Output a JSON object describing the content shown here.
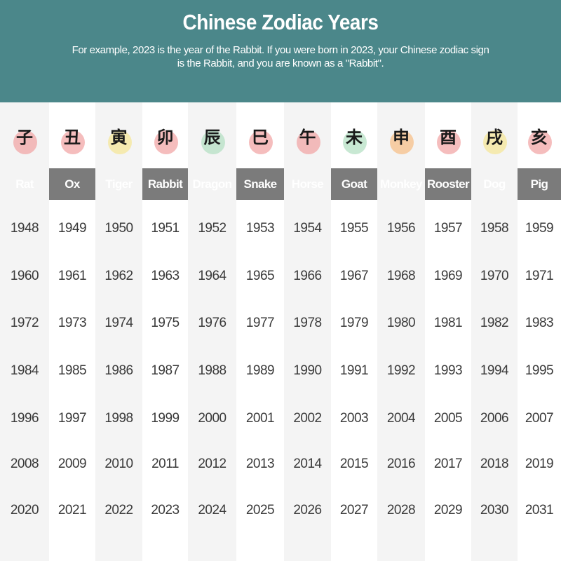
{
  "header": {
    "title": "Chinese Zodiac Years",
    "subtitle": "For example, 2023 is the year of the Rabbit. If you were born in 2023, your Chinese zodiac sign is the Rabbit, and you are known as a \"Rabbit\"."
  },
  "colors": {
    "header_bg": "#4b878a",
    "band_bg": "#7b7b7b"
  },
  "animals": [
    {
      "name": "Rat",
      "char": "子",
      "icon": "rat-icon",
      "blob": "#f2a7a7",
      "years": [
        "1948",
        "1960",
        "1972",
        "1984",
        "1996",
        "2008",
        "2020"
      ]
    },
    {
      "name": "Ox",
      "char": "丑",
      "icon": "ox-icon",
      "blob": "#f2a7a7",
      "years": [
        "1949",
        "1961",
        "1973",
        "1985",
        "1997",
        "2009",
        "2021"
      ]
    },
    {
      "name": "Tiger",
      "char": "寅",
      "icon": "tiger-icon",
      "blob": "#f5e79a",
      "years": [
        "1950",
        "1962",
        "1974",
        "1986",
        "1998",
        "2010",
        "2022"
      ]
    },
    {
      "name": "Rabbit",
      "char": "卯",
      "icon": "rabbit-icon",
      "blob": "#f2a7a7",
      "years": [
        "1951",
        "1963",
        "1975",
        "1987",
        "1999",
        "2011",
        "2023"
      ]
    },
    {
      "name": "Dragon",
      "char": "辰",
      "icon": "dragon-icon",
      "blob": "#b5e0c4",
      "years": [
        "1952",
        "1964",
        "1976",
        "1988",
        "2000",
        "2012",
        "2024"
      ]
    },
    {
      "name": "Snake",
      "char": "巳",
      "icon": "snake-icon",
      "blob": "#f2a7a7",
      "years": [
        "1953",
        "1965",
        "1977",
        "1989",
        "2001",
        "2013",
        "2025"
      ]
    },
    {
      "name": "Horse",
      "char": "午",
      "icon": "horse-icon",
      "blob": "#f2a7a7",
      "years": [
        "1954",
        "1966",
        "1978",
        "1990",
        "2002",
        "2014",
        "2026"
      ]
    },
    {
      "name": "Goat",
      "char": "未",
      "icon": "goat-icon",
      "blob": "#b5e0c4",
      "years": [
        "1955",
        "1967",
        "1979",
        "1991",
        "2003",
        "2015",
        "2027"
      ]
    },
    {
      "name": "Monkey",
      "char": "申",
      "icon": "monkey-icon",
      "blob": "#f7c08a",
      "years": [
        "1956",
        "1968",
        "1980",
        "1992",
        "2004",
        "2016",
        "2028"
      ]
    },
    {
      "name": "Rooster",
      "char": "酉",
      "icon": "rooster-icon",
      "blob": "#f2a7a7",
      "years": [
        "1957",
        "1969",
        "1981",
        "1993",
        "2005",
        "2017",
        "2029"
      ]
    },
    {
      "name": "Dog",
      "char": "戌",
      "icon": "dog-icon",
      "blob": "#f5e79a",
      "years": [
        "1958",
        "1970",
        "1982",
        "1994",
        "2006",
        "2018",
        "2030"
      ]
    },
    {
      "name": "Pig",
      "char": "亥",
      "icon": "pig-icon",
      "blob": "#f2a7a7",
      "years": [
        "1959",
        "1971",
        "1983",
        "1995",
        "2007",
        "2019",
        "2031"
      ]
    }
  ]
}
